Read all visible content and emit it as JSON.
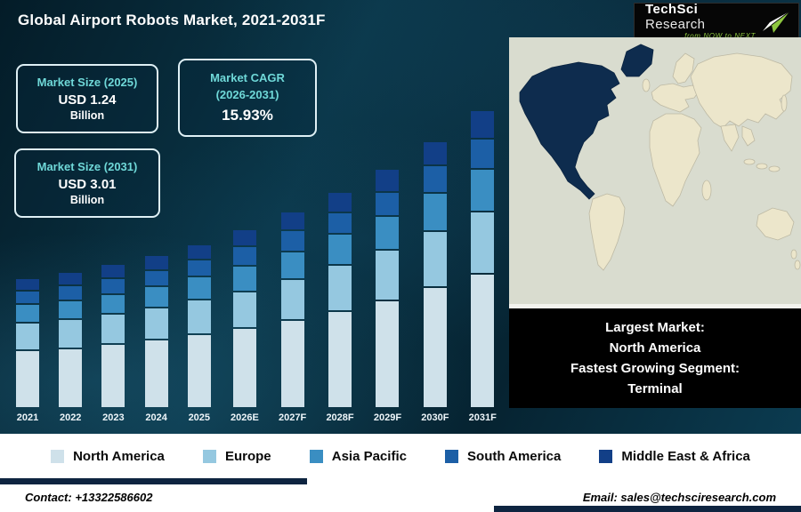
{
  "header": {
    "title": "Global Airport Robots Market, 2021-2031F"
  },
  "logo": {
    "brand_primary": "TechSci",
    "brand_secondary": "Research",
    "tagline": "from NOW to NEXT"
  },
  "stats": [
    {
      "label": "Market Size (2025)",
      "value": "USD 1.24",
      "unit": "Billion"
    },
    {
      "label_line1": "Market CAGR",
      "label_line2": "(2026-2031)",
      "value": "15.93%"
    },
    {
      "label": "Market Size (2031)",
      "value": "USD 3.01",
      "unit": "Billion"
    }
  ],
  "chart_data": {
    "type": "bar",
    "stacked": true,
    "title": "Global Airport Robots Market, 2021-2031F",
    "unit": "USD Billion",
    "xlabel": "",
    "ylabel": "",
    "ylim": [
      0,
      3.2
    ],
    "grid": false,
    "legend_position": "bottom",
    "categories": [
      "2021",
      "2022",
      "2023",
      "2024",
      "2025",
      "2026E",
      "2027F",
      "2028F",
      "2029F",
      "2030F",
      "2031F"
    ],
    "series": [
      {
        "name": "North America",
        "color": "#cfe1ea",
        "values": [
          0.37,
          0.4,
          0.45,
          0.51,
          0.58,
          0.66,
          0.77,
          0.89,
          1.03,
          1.2,
          1.38
        ]
      },
      {
        "name": "Europe",
        "color": "#95c8e0",
        "values": [
          0.17,
          0.19,
          0.21,
          0.23,
          0.26,
          0.3,
          0.35,
          0.41,
          0.47,
          0.55,
          0.63
        ]
      },
      {
        "name": "Asia Pacific",
        "color": "#3a8ec2",
        "values": [
          0.11,
          0.12,
          0.13,
          0.15,
          0.17,
          0.2,
          0.23,
          0.27,
          0.31,
          0.36,
          0.42
        ]
      },
      {
        "name": "South America",
        "color": "#1c5fa6",
        "values": [
          0.08,
          0.09,
          0.1,
          0.11,
          0.12,
          0.15,
          0.17,
          0.19,
          0.22,
          0.26,
          0.3
        ]
      },
      {
        "name": "Middle East & Africa",
        "color": "#123f87",
        "values": [
          0.07,
          0.08,
          0.09,
          0.1,
          0.11,
          0.13,
          0.15,
          0.17,
          0.21,
          0.23,
          0.28
        ]
      }
    ],
    "totals": [
      0.8,
      0.88,
      0.98,
      1.1,
      1.24,
      1.44,
      1.67,
      1.93,
      2.24,
      2.6,
      3.01
    ]
  },
  "map_panel": {
    "largest_market_label": "Largest Market:",
    "largest_market_value": "North America",
    "fastest_segment_label": "Fastest Growing Segment:",
    "fastest_segment_value": "Terminal"
  },
  "footer": {
    "contact": "Contact: +13322586602",
    "email": "Email: sales@techsciresearch.com"
  },
  "colors": {
    "background_dark": "#07293a",
    "accent_teal": "#6fd8d8",
    "brand_green": "#8dc63f",
    "navy_bar": "#0e2440",
    "map_ocean": "#d9dccf",
    "map_land": "#ece6cb",
    "map_highlight": "#0e2c4e"
  }
}
